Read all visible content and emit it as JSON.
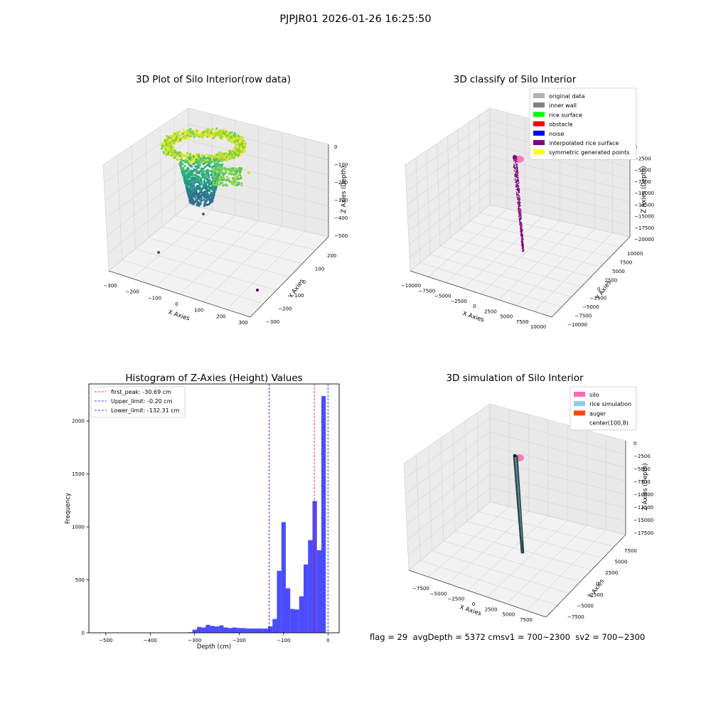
{
  "figure_title": "PJPJR01 2026-01-26 16:25:50",
  "footer": {
    "flag": "flag = 29",
    "avg_depth": "avgDepth = 5372 cm",
    "sv1": "sv1 = 700~2300",
    "sv2": "sv2 = 700~2300"
  },
  "chart_data": [
    {
      "type": "scatter",
      "projection": "3d",
      "title": "3D Plot of Silo Interior(row data)",
      "xlabel": "X Axies",
      "ylabel": "Y Axies",
      "zlabel": "Z Axies (Depth)",
      "x_ticks": [
        "−300",
        "−200",
        "−100",
        "0",
        "100",
        "200",
        "300"
      ],
      "y_ticks": [
        "−300",
        "−200",
        "−100",
        "0",
        "100",
        "200"
      ],
      "z_ticks": [
        "0",
        "−100",
        "−200",
        "−300",
        "−400",
        "−500"
      ],
      "colormap": "viridis",
      "grid": true
    },
    {
      "type": "scatter",
      "projection": "3d",
      "title": "3D classify of Silo Interior",
      "xlabel": "X Axies",
      "ylabel": "Y Axies",
      "zlabel": "Z Axies (Depth)",
      "x_ticks": [
        "−10000",
        "−7500",
        "−5000",
        "−2500",
        "0",
        "2500",
        "5000",
        "7500",
        "10000"
      ],
      "y_ticks": [
        "−10000",
        "−7500",
        "−5000",
        "−2500",
        "0",
        "2500",
        "5000",
        "7500",
        "10000"
      ],
      "z_ticks": [
        "0",
        "−2500",
        "−5000",
        "−7500",
        "−10000",
        "−12500",
        "−15000",
        "−17500",
        "−20000"
      ],
      "legend_position": "top-right",
      "legend": [
        {
          "label": "original data",
          "color": "#b2b2b2"
        },
        {
          "label": "inner wall",
          "color": "#808080"
        },
        {
          "label": "rice surface",
          "color": "#00ff00"
        },
        {
          "label": "obstacle",
          "color": "#ff0000"
        },
        {
          "label": "noise",
          "color": "#0000ff"
        },
        {
          "label": "interpolated rice surface",
          "color": "#800080"
        },
        {
          "label": "symmetric generated points",
          "color": "#ffff00"
        }
      ],
      "grid": true
    },
    {
      "type": "bar",
      "title": "Histogram of Z-Axies (Height) Values",
      "xlabel": "Depth (cm)",
      "ylabel": "Frequency",
      "xlim": [
        -538,
        25
      ],
      "ylim": [
        0,
        2350
      ],
      "x_ticks": [
        -500,
        -400,
        -300,
        -200,
        -100,
        0
      ],
      "x_tick_labels": [
        "−500",
        "−400",
        "−300",
        "−200",
        "−100",
        "0"
      ],
      "y_ticks": [
        0,
        500,
        1000,
        1500,
        2000
      ],
      "bar_color": "#0000ff",
      "bin_width": 10,
      "bins": [
        {
          "x": -310,
          "count": 5
        },
        {
          "x": -300,
          "count": 30
        },
        {
          "x": -290,
          "count": 55
        },
        {
          "x": -280,
          "count": 50
        },
        {
          "x": -270,
          "count": 75
        },
        {
          "x": -260,
          "count": 65
        },
        {
          "x": -250,
          "count": 60
        },
        {
          "x": -240,
          "count": 70
        },
        {
          "x": -230,
          "count": 50
        },
        {
          "x": -220,
          "count": 45
        },
        {
          "x": -210,
          "count": 50
        },
        {
          "x": -200,
          "count": 45
        },
        {
          "x": -190,
          "count": 45
        },
        {
          "x": -180,
          "count": 40
        },
        {
          "x": -170,
          "count": 40
        },
        {
          "x": -160,
          "count": 40
        },
        {
          "x": -150,
          "count": 40
        },
        {
          "x": -140,
          "count": 40
        },
        {
          "x": -130,
          "count": 60
        },
        {
          "x": -120,
          "count": 130
        },
        {
          "x": -110,
          "count": 585
        },
        {
          "x": -100,
          "count": 1045
        },
        {
          "x": -90,
          "count": 420
        },
        {
          "x": -80,
          "count": 225
        },
        {
          "x": -70,
          "count": 220
        },
        {
          "x": -60,
          "count": 345
        },
        {
          "x": -50,
          "count": 645
        },
        {
          "x": -40,
          "count": 875
        },
        {
          "x": -30,
          "count": 1245
        },
        {
          "x": -20,
          "count": 780
        },
        {
          "x": -10,
          "count": 2235
        }
      ],
      "reference_lines": [
        {
          "label": "first_peak: -30.69 cm",
          "value": -30.69,
          "color": "#ff0000"
        },
        {
          "label": "Upper_limit: -0.20 cm",
          "value": -0.2,
          "color": "#0000ff"
        },
        {
          "label": "Lower_limit: -132.31 cm",
          "value": -132.31,
          "color": "#0000ff"
        }
      ],
      "legend_position": "top-left",
      "grid": false
    },
    {
      "type": "surface",
      "projection": "3d",
      "title": "3D simulation of Silo Interior",
      "xlabel": "X Axies",
      "ylabel": "Y Axies",
      "zlabel": "Z Axies (Depth)",
      "x_ticks": [
        "−7500",
        "−5000",
        "−2500",
        "0",
        "2500",
        "5000",
        "7500"
      ],
      "y_ticks": [
        "−7500",
        "−5000",
        "−2500",
        "0",
        "2500",
        "5000",
        "7500"
      ],
      "z_ticks": [
        "0",
        "−2500",
        "−5000",
        "−7500",
        "−10000",
        "−12500",
        "−15000",
        "−17500"
      ],
      "legend_position": "top-right",
      "legend": [
        {
          "label": "silo",
          "color": "#ff69b4"
        },
        {
          "label": "rice simulation",
          "color": "#87ceeb"
        },
        {
          "label": "auger",
          "color": "#ff4500"
        },
        {
          "label": "center(100,8)",
          "color": "none"
        }
      ],
      "grid": true
    }
  ]
}
